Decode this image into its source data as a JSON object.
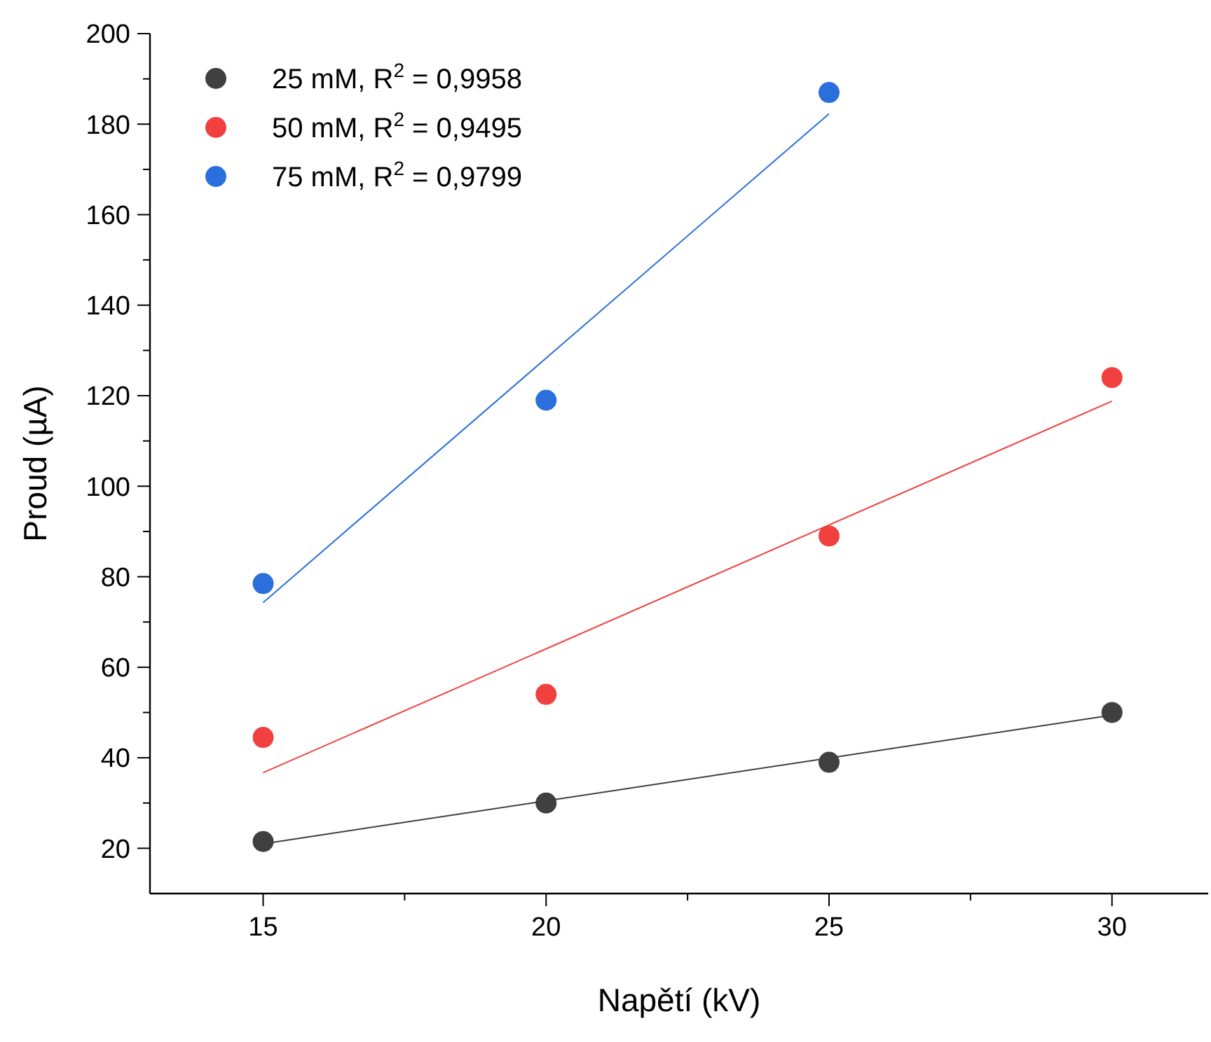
{
  "chart_data": {
    "type": "scatter",
    "xlabel": "Napětí (kV)",
    "ylabel": "Proud (µA)",
    "xlim": [
      13,
      31.7
    ],
    "ylim": [
      10,
      200
    ],
    "xticks": [
      15,
      {
        "value": 17.5,
        "label": null
      },
      20,
      {
        "value": 22.5,
        "label": null
      },
      25,
      {
        "value": 27.5,
        "label": null
      },
      30
    ],
    "yticks": [
      20,
      {
        "value": 30,
        "label": null
      },
      40,
      {
        "value": 50,
        "label": null
      },
      60,
      {
        "value": 70,
        "label": null
      },
      80,
      {
        "value": 90,
        "label": null
      },
      100,
      {
        "value": 110,
        "label": null
      },
      120,
      {
        "value": 130,
        "label": null
      },
      140,
      {
        "value": 150,
        "label": null
      },
      160,
      {
        "value": 170,
        "label": null
      },
      180,
      {
        "value": 190,
        "label": null
      },
      200
    ],
    "grid": false,
    "legend": "top left",
    "marker": "circle",
    "series": [
      {
        "name": "25 mM, R$^{2}$ = 0,9958",
        "type": "scatter",
        "color": "#404040",
        "x": [
          15,
          20,
          25,
          30
        ],
        "values": [
          21.5,
          30,
          39,
          50
        ]
      },
      {
        "name": "50 mM, R$^{2}$ = 0,9495",
        "type": "scatter",
        "color": "#f04040",
        "x": [
          15,
          20,
          25,
          30
        ],
        "values": [
          44.5,
          54,
          89,
          124
        ]
      },
      {
        "name": "75 mM, R$^{2}$ = 0,9799",
        "type": "scatter",
        "color": "#2a6fdb",
        "x": [
          15,
          20,
          25
        ],
        "values": [
          78.5,
          119,
          187
        ]
      },
      {
        "type": "line",
        "color": "#404040",
        "x": [
          15,
          30
        ],
        "values": [
          21,
          49.4
        ],
        "marker": "none",
        "line_style": "solid"
      },
      {
        "type": "line",
        "color": "#f04040",
        "x": [
          15,
          30
        ],
        "values": [
          36.7,
          118.8
        ],
        "marker": "none",
        "line_style": "solid"
      },
      {
        "type": "line",
        "color": "#2a6fdb",
        "x": [
          15,
          25
        ],
        "values": [
          74.3,
          182.3
        ],
        "marker": "none",
        "line_style": "solid"
      }
    ]
  }
}
